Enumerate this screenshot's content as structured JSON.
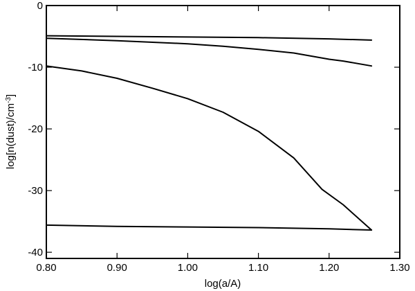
{
  "chart_data": {
    "type": "line",
    "title": "",
    "xlabel": "log(a/A)",
    "ylabel_main": "log[n(dust)/cm",
    "ylabel_sup": "-3",
    "ylabel_tail": "]",
    "xlim": [
      0.8,
      1.3
    ],
    "ylim": [
      -41,
      0
    ],
    "grid": false,
    "xticks": [
      {
        "value": 0.8,
        "label": "0.80"
      },
      {
        "value": 0.9,
        "label": "0.90"
      },
      {
        "value": 1.0,
        "label": "1.00"
      },
      {
        "value": 1.1,
        "label": "1.10"
      },
      {
        "value": 1.2,
        "label": "1.20"
      },
      {
        "value": 1.3,
        "label": "1.30"
      }
    ],
    "yticks": [
      {
        "value": 0,
        "label": "0"
      },
      {
        "value": -10,
        "label": "-10"
      },
      {
        "value": -20,
        "label": "-20"
      },
      {
        "value": -30,
        "label": "-30"
      },
      {
        "value": -40,
        "label": "-40"
      }
    ],
    "series": [
      {
        "x": [
          0.8,
          0.9,
          1.0,
          1.1,
          1.2,
          1.26
        ],
        "y": [
          -4.9,
          -5.0,
          -5.1,
          -5.2,
          -5.4,
          -5.6
        ]
      },
      {
        "x": [
          0.8,
          0.9,
          1.0,
          1.05,
          1.1,
          1.15,
          1.2,
          1.22,
          1.26
        ],
        "y": [
          -5.3,
          -5.7,
          -6.2,
          -6.6,
          -7.1,
          -7.7,
          -8.7,
          -9.0,
          -9.8
        ]
      },
      {
        "x": [
          0.8,
          0.85,
          0.9,
          0.95,
          1.0,
          1.05,
          1.1,
          1.15,
          1.19,
          1.22,
          1.26
        ],
        "y": [
          -9.8,
          -10.6,
          -11.8,
          -13.4,
          -15.1,
          -17.3,
          -20.4,
          -24.7,
          -29.8,
          -32.3,
          -36.4
        ]
      },
      {
        "x": [
          0.8,
          0.9,
          1.0,
          1.1,
          1.2,
          1.26
        ],
        "y": [
          -35.6,
          -35.8,
          -35.9,
          -36.0,
          -36.2,
          -36.4
        ]
      }
    ]
  }
}
